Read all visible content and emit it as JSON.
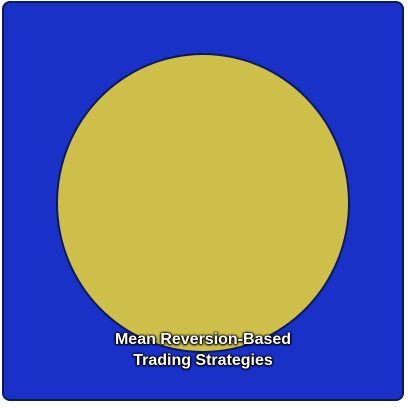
{
  "tile": {
    "caption_line1": "Mean Reversion-Based",
    "caption_line2": "Trading Strategies"
  },
  "colors": {
    "background": "#1a31c7",
    "circle": "#cdbf4a",
    "outline": "#0c1a5c",
    "text": "#ffffff"
  },
  "icon": "circle-shape"
}
